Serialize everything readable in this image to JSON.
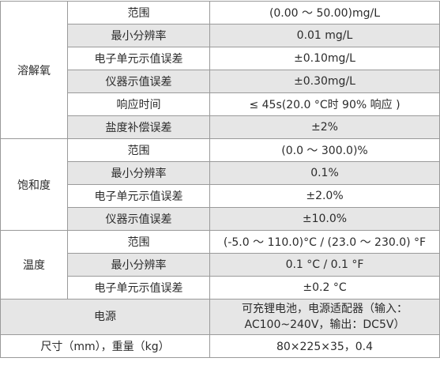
{
  "groups": [
    {
      "name": "溶解氧",
      "rows": [
        [
          "范围",
          "(0.00 ～ 50.00)mg/L"
        ],
        [
          "最小分辨率",
          "0.01 mg/L"
        ],
        [
          "电子单元示值误差",
          "±0.10mg/L"
        ],
        [
          "仪器示值误差",
          "±0.30mg/L"
        ],
        [
          "响应时间",
          "≤ 45s(20.0 °C时 90% 响应 )"
        ],
        [
          "盐度补偿误差",
          "±2%"
        ]
      ]
    },
    {
      "name": "饱和度",
      "rows": [
        [
          "范围",
          "(0.0 ～ 300.0)%"
        ],
        [
          "最小分辨率",
          "0.1%"
        ],
        [
          "电子单元示值误差",
          "±2.0%"
        ],
        [
          "仪器示值误差",
          "±10.0%"
        ]
      ]
    },
    {
      "name": "温度",
      "rows": [
        [
          "范围",
          "(-5.0 ～ 110.0)°C / (23.0 ～ 230.0) °F"
        ],
        [
          "最小分辨率",
          "0.1 °C / 0.1 °F"
        ],
        [
          "电子单元示值误差",
          "±0.2 °C"
        ]
      ]
    }
  ],
  "footer": [
    {
      "label": "电源",
      "lines": [
        "可充锂电池，电源适配器（输入：",
        "AC100~240V，输出：DC5V）"
      ]
    },
    {
      "label": "尺寸（mm），重量（kg）",
      "lines": [
        "80×225×35，0.4"
      ]
    }
  ]
}
